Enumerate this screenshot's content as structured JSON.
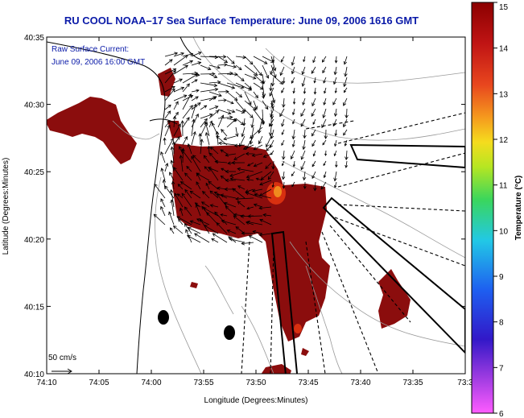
{
  "title": "RU COOL  NOAA–17  Sea Surface Temperature:  June 09, 2006 1616 GMT",
  "legend": {
    "line1": "Raw Surface Current:",
    "line2": "June 09, 2006 16:00 GMT"
  },
  "scale_label": "50 cm/s",
  "x_axis": {
    "title": "Longitude (Degrees:Minutes)",
    "ticks": [
      "74:10",
      "74:05",
      "74:00",
      "73:55",
      "73:50",
      "73:45",
      "73:40",
      "73:35",
      "73:3"
    ]
  },
  "y_axis": {
    "title": "Latitude (Degrees:Minutes)",
    "ticks": [
      "40:35",
      "40:30",
      "40:25",
      "40:20",
      "40:15",
      "40:10"
    ]
  },
  "colorbar": {
    "label": "Temperature (°C)",
    "ticks": [
      "15",
      "14",
      "13",
      "12",
      "11",
      "10",
      "9",
      "8",
      "7",
      "6"
    ],
    "colors": [
      "#8b0000",
      "#c81414",
      "#e8461e",
      "#f08c1e",
      "#f5d21e",
      "#b4e61e",
      "#3cd25a",
      "#28c8dc",
      "#1e64f0",
      "#3214c8",
      "#8c28dc",
      "#f050f0"
    ]
  },
  "sst_color": "#8b0d0d"
}
